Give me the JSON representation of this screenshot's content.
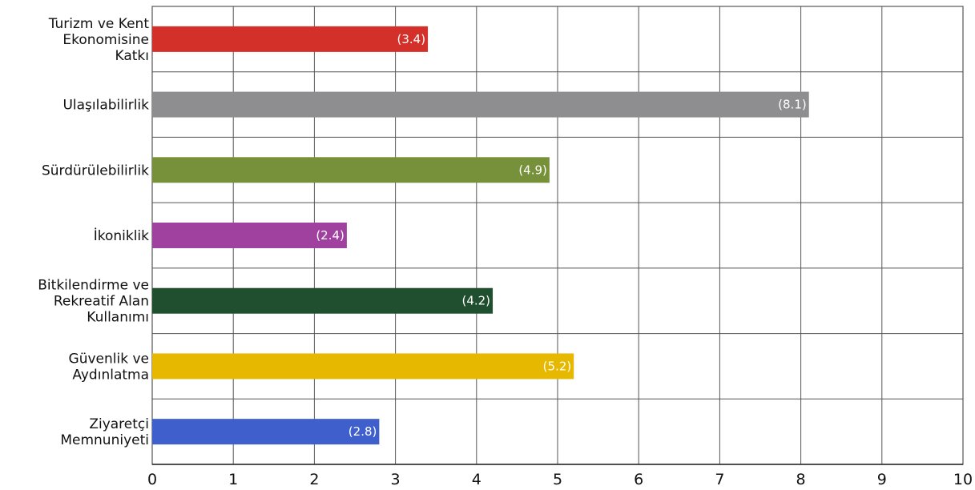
{
  "chart_data": {
    "type": "bar",
    "orientation": "horizontal",
    "categories": [
      [
        "Turizm ve Kent",
        "Ekonomisine",
        "Katkı"
      ],
      [
        "Ulaşılabilirlik"
      ],
      [
        "Sürdürülebilirlik"
      ],
      [
        "İkoniklik"
      ],
      [
        "Bitkilendirme ve",
        "Rekreatif Alan",
        "Kullanımı"
      ],
      [
        "Güvenlik ve",
        "Aydınlatma"
      ],
      [
        "Ziyaretçi",
        "Memnuniyeti"
      ]
    ],
    "values": [
      3.4,
      8.1,
      4.9,
      2.4,
      4.2,
      5.2,
      2.8
    ],
    "data_labels": [
      "(3.4)",
      "(8.1)",
      "(4.9)",
      "(2.4)",
      "(4.2)",
      "(5.2)",
      "(2.8)"
    ],
    "colors": [
      "#d3302a",
      "#8e8e90",
      "#77903a",
      "#a0409f",
      "#1f4f2e",
      "#e6b800",
      "#3f5fcc"
    ],
    "xlim": [
      0,
      10
    ],
    "xticks": [
      "0",
      "1",
      "2",
      "3",
      "4",
      "5",
      "6",
      "7",
      "8",
      "9",
      "10"
    ],
    "grid": true,
    "title": "",
    "xlabel": "",
    "ylabel": ""
  }
}
